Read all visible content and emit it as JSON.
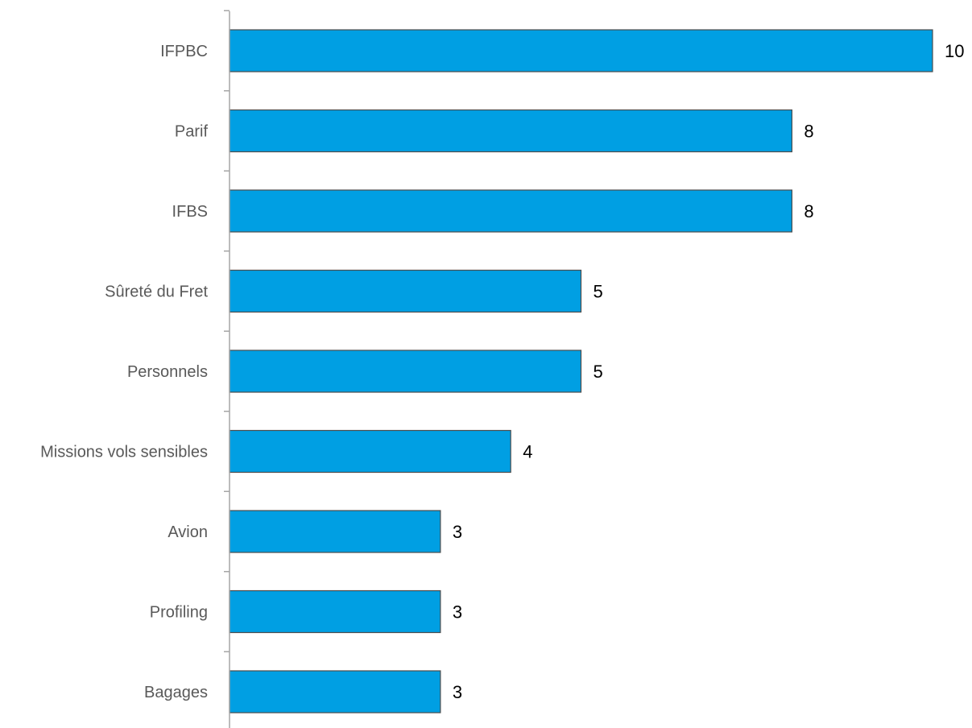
{
  "chart_data": {
    "type": "bar",
    "orientation": "horizontal",
    "title": "",
    "xlabel": "",
    "ylabel": "",
    "categories": [
      "IFPBC",
      "Parif",
      "IFBS",
      "Sûreté du Fret",
      "Personnels",
      "Missions vols sensibles",
      "Avion",
      "Profiling",
      "Bagages"
    ],
    "values": [
      10,
      8,
      8,
      5,
      5,
      4,
      3,
      3,
      3
    ],
    "xlim": [
      0,
      10
    ],
    "grid": false,
    "legend": "none",
    "data_labels": true,
    "colors": {
      "bar_fill": "#009FE3",
      "bar_stroke": "#4D4D4D",
      "axis": "#A6A6A6",
      "category_text": "#595959",
      "value_text": "#000000"
    }
  }
}
